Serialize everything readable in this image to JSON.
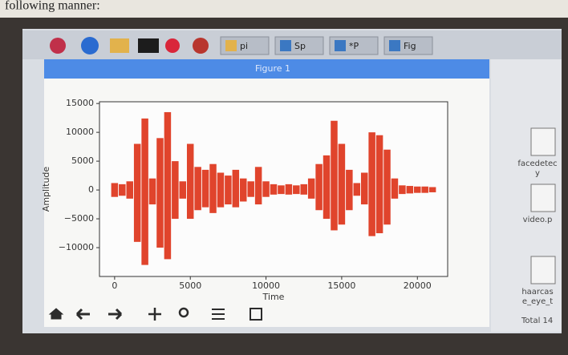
{
  "caption": "following manner:",
  "taskbar": {
    "items": [
      "pi",
      "Sp",
      "*P",
      "Fig"
    ]
  },
  "window": {
    "title": "Figure 1"
  },
  "desktop": {
    "icons": [
      {
        "lines": [
          "facedetec",
          "y"
        ]
      },
      {
        "lines": [
          "video.p"
        ]
      },
      {
        "lines": [
          "haarcas",
          "e_eye_t"
        ]
      }
    ],
    "status": "Total 14"
  },
  "chart_data": {
    "type": "waveform",
    "xlabel": "Time",
    "ylabel": "Amplitude",
    "color": "#e0442c",
    "xlim": [
      -1000,
      22000
    ],
    "ylim": [
      -15000,
      15300
    ],
    "xticks": [
      0,
      5000,
      10000,
      15000,
      20000
    ],
    "yticks": [
      {
        "value": -10000,
        "label": "−10000"
      },
      {
        "value": -5000,
        "label": "−5000"
      },
      0,
      5000,
      10000,
      15000
    ],
    "x": [
      0,
      500,
      1000,
      1500,
      2000,
      2500,
      3000,
      3500,
      4000,
      4500,
      5000,
      5500,
      6000,
      6500,
      7000,
      7500,
      8000,
      8500,
      9000,
      9500,
      10000,
      10500,
      11000,
      11500,
      12000,
      12500,
      13000,
      13500,
      14000,
      14500,
      15000,
      15500,
      16000,
      16500,
      17000,
      17500,
      18000,
      18500,
      19000,
      19500,
      20000,
      20500,
      21000
    ],
    "envelope_max": [
      1200,
      1000,
      1500,
      8000,
      12400,
      2000,
      9000,
      13500,
      5000,
      1500,
      8000,
      4000,
      3500,
      4500,
      3000,
      2500,
      3500,
      2000,
      1500,
      4000,
      1500,
      1000,
      800,
      1000,
      800,
      1000,
      2000,
      4500,
      6000,
      12000,
      8000,
      3500,
      1200,
      3000,
      10000,
      9500,
      7000,
      2000,
      800,
      700,
      600,
      600,
      500
    ],
    "envelope_min": [
      -1200,
      -1000,
      -1500,
      -9000,
      -13000,
      -2500,
      -10000,
      -12000,
      -5000,
      -1500,
      -5000,
      -3500,
      -3000,
      -4000,
      -3000,
      -2500,
      -3000,
      -2000,
      -1200,
      -2500,
      -1200,
      -800,
      -700,
      -800,
      -700,
      -800,
      -1500,
      -3500,
      -5000,
      -7000,
      -6000,
      -3500,
      -1000,
      -2500,
      -8000,
      -7500,
      -6000,
      -1500,
      -700,
      -600,
      -500,
      -500,
      -400
    ]
  }
}
